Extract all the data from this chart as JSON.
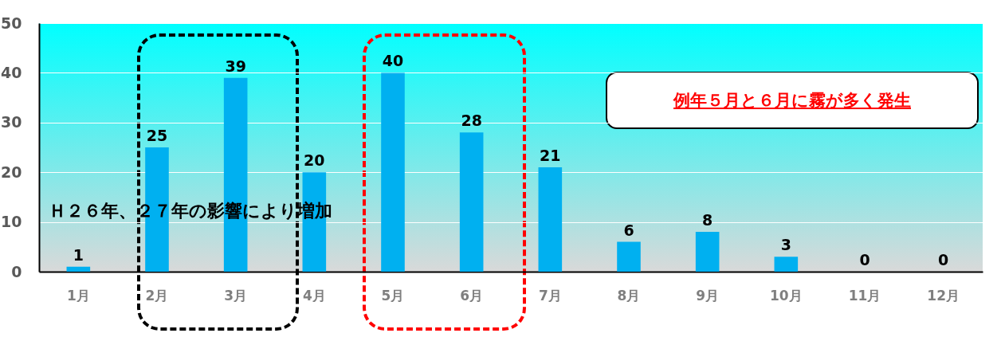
{
  "chart_data": {
    "type": "bar",
    "categories": [
      "1月",
      "2月",
      "3月",
      "4月",
      "5月",
      "6月",
      "7月",
      "8月",
      "9月",
      "10月",
      "11月",
      "12月"
    ],
    "values": [
      1,
      25,
      39,
      20,
      40,
      28,
      21,
      6,
      8,
      3,
      0,
      0
    ],
    "color": "#00b0f0",
    "ylim": [
      0,
      50
    ],
    "yticks": [
      0,
      10,
      20,
      30,
      40,
      50
    ],
    "grid": "y",
    "data_labels": true,
    "annotations": [
      "Ｈ２６年、２７年の影響により増加",
      "例年５月と６月に霧が多く発生"
    ]
  }
}
